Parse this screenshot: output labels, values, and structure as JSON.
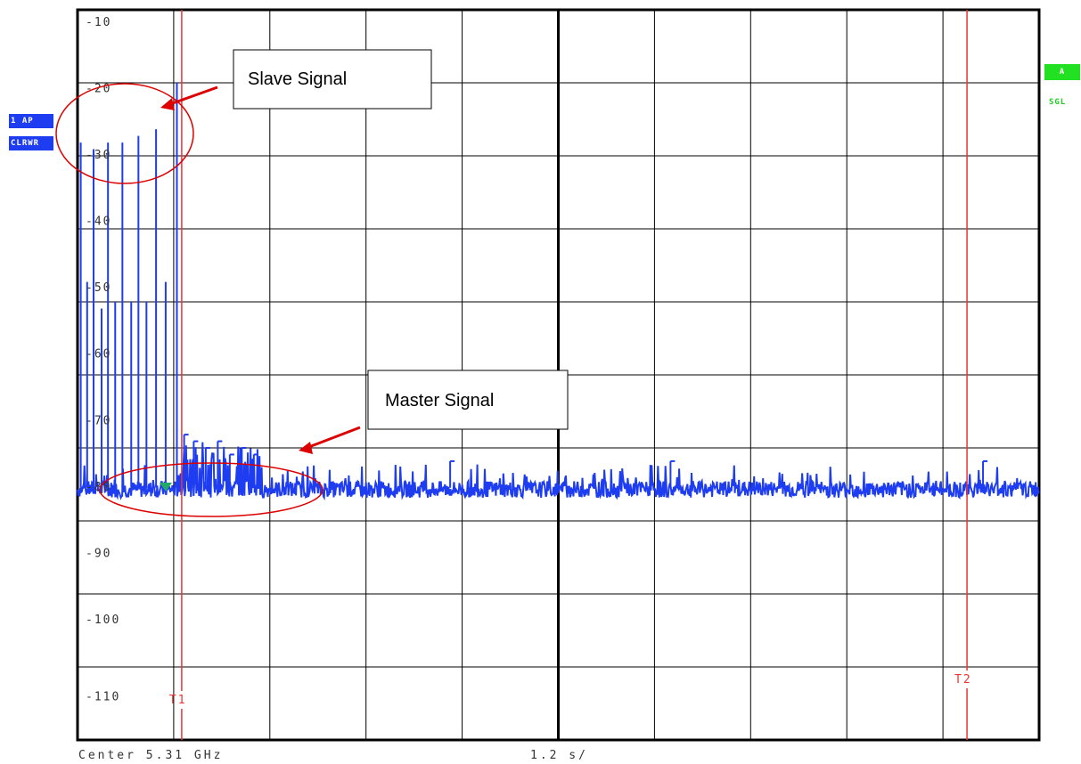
{
  "colors": {
    "trace": "#1e3cf0",
    "marker_line": "#ee3333",
    "annotation": "#dd0000",
    "grid": "#000000",
    "badge_trace_bg": "#1e3cf0",
    "badge_status_bg": "#22e022",
    "marker_triangle": "#22aa66"
  },
  "badges": {
    "trace_mode": "1 AP",
    "trace_clear": "CLRWR",
    "screen": "A",
    "sweep": "SGL"
  },
  "footer": {
    "center": "Center 5.31 GHz",
    "span": "1.2 s/"
  },
  "annotations": {
    "slave": "Slave Signal",
    "master": "Master Signal"
  },
  "chart_data": {
    "type": "line",
    "title": "",
    "xlabel": "",
    "ylabel": "",
    "xlim": [
      0,
      12
    ],
    "ylim": [
      -120,
      -10
    ],
    "y_ticks": [
      -10,
      -20,
      -30,
      -40,
      -50,
      -60,
      -70,
      -80,
      -90,
      -100,
      -110
    ],
    "y_tick_labels": [
      "-10",
      "-20",
      "-30",
      "-40",
      "-50",
      "-60",
      "-70",
      "-80",
      "-90",
      "-100",
      "-110"
    ],
    "grid": true,
    "x_divisions": 10,
    "y_divisions": 10,
    "noise_floor": -82,
    "markers": [
      {
        "label": "T1",
        "x": 1.3
      },
      {
        "label": "T2",
        "x": 11.1
      }
    ],
    "series": [
      {
        "pulses": [
          {
            "x": 0.04,
            "peak": -30
          },
          {
            "x": 0.12,
            "peak": -51
          },
          {
            "x": 0.2,
            "peak": -31
          },
          {
            "x": 0.3,
            "peak": -55
          },
          {
            "x": 0.38,
            "peak": -30
          },
          {
            "x": 0.47,
            "peak": -54
          },
          {
            "x": 0.56,
            "peak": -30
          },
          {
            "x": 0.67,
            "peak": -54
          },
          {
            "x": 0.76,
            "peak": -29
          },
          {
            "x": 0.86,
            "peak": -54
          },
          {
            "x": 0.98,
            "peak": -28
          },
          {
            "x": 1.1,
            "peak": -51
          },
          {
            "x": 1.24,
            "peak": -21
          }
        ],
        "master_peaks": [
          {
            "x": 1.33,
            "peak": -74
          },
          {
            "x": 1.45,
            "peak": -75
          },
          {
            "x": 1.6,
            "peak": -76
          },
          {
            "x": 1.75,
            "peak": -75
          },
          {
            "x": 1.9,
            "peak": -77
          },
          {
            "x": 2.05,
            "peak": -76
          },
          {
            "x": 2.2,
            "peak": -77
          },
          {
            "x": 4.65,
            "peak": -78
          },
          {
            "x": 7.4,
            "peak": -78
          },
          {
            "x": 11.3,
            "peak": -78
          }
        ]
      }
    ]
  }
}
